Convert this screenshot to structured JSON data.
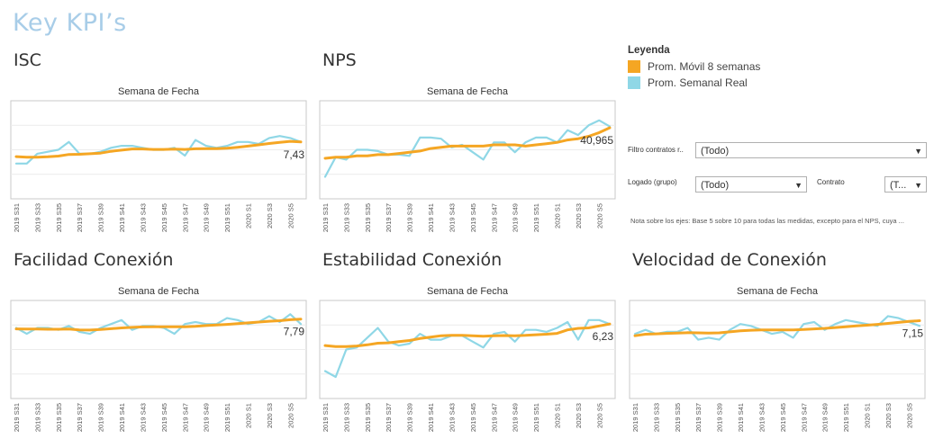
{
  "page_title": "Key KPI’s",
  "legend": {
    "title": "Leyenda",
    "items": [
      {
        "label": "Prom. Móvil 8 semanas",
        "color": "#f5a623"
      },
      {
        "label": "Prom. Semanal Real",
        "color": "#8fd7e6"
      }
    ]
  },
  "filters": {
    "contratos_label": "Filtro contratos r..",
    "contratos_value": "(Todo)",
    "logado_label": "Logado (grupo)",
    "logado_value": "(Todo)",
    "contrato_label": "Contrato",
    "contrato_value": "(T..."
  },
  "note": "Nota sobre los ejes: Base 5 sobre 10 para todas las medidas, excepto para el NPS, cuya ...",
  "chart_data": [
    {
      "type": "line",
      "panel_title": "ISC",
      "title": "Semana de Fecha",
      "x": [
        "2019 S31",
        "2019 S32",
        "2019 S33",
        "2019 S34",
        "2019 S35",
        "2019 S36",
        "2019 S37",
        "2019 S38",
        "2019 S39",
        "2019 S40",
        "2019 S41",
        "2019 S42",
        "2019 S43",
        "2019 S44",
        "2019 S45",
        "2019 S46",
        "2019 S47",
        "2019 S48",
        "2019 S49",
        "2019 S50",
        "2019 S51",
        "2019 S52",
        "2020 S1",
        "2020 S2",
        "2020 S3",
        "2020 S4",
        "2020 S5",
        "2020 S6"
      ],
      "tick_labels": [
        "2019 S31",
        "2019 S33",
        "2019 S35",
        "2019 S37",
        "2019 S39",
        "2019 S41",
        "2019 S43",
        "2019 S45",
        "2019 S47",
        "2019 S49",
        "2019 S51",
        "2020 S1",
        "2020 S3",
        "2020 S5"
      ],
      "ylim": [
        5,
        10
      ],
      "series": [
        {
          "name": "Prom. Semanal Real",
          "values": [
            6.8,
            6.8,
            7.3,
            7.4,
            7.5,
            7.9,
            7.3,
            7.3,
            7.4,
            7.6,
            7.7,
            7.7,
            7.6,
            7.5,
            7.5,
            7.6,
            7.2,
            8.0,
            7.7,
            7.6,
            7.7,
            7.9,
            7.9,
            7.8,
            8.1,
            8.2,
            8.1,
            7.9
          ]
        },
        {
          "name": "Prom. Móvil 8 semanas",
          "values": [
            7.15,
            7.12,
            7.12,
            7.14,
            7.18,
            7.26,
            7.27,
            7.3,
            7.33,
            7.42,
            7.48,
            7.54,
            7.54,
            7.52,
            7.52,
            7.53,
            7.52,
            7.55,
            7.56,
            7.56,
            7.58,
            7.63,
            7.69,
            7.75,
            7.82,
            7.88,
            7.93,
            7.9
          ]
        }
      ],
      "label": "7,43"
    },
    {
      "type": "line",
      "panel_title": "NPS",
      "title": "Semana de Fecha",
      "x": [
        "2019 S31",
        "2019 S32",
        "2019 S33",
        "2019 S34",
        "2019 S35",
        "2019 S36",
        "2019 S37",
        "2019 S38",
        "2019 S39",
        "2019 S40",
        "2019 S41",
        "2019 S42",
        "2019 S43",
        "2019 S44",
        "2019 S45",
        "2019 S46",
        "2019 S47",
        "2019 S48",
        "2019 S49",
        "2019 S50",
        "2019 S51",
        "2019 S52",
        "2020 S1",
        "2020 S2",
        "2020 S3",
        "2020 S4",
        "2020 S5",
        "2020 S6"
      ],
      "tick_labels": [
        "2019 S31",
        "2019 S33",
        "2019 S35",
        "2019 S37",
        "2019 S39",
        "2019 S41",
        "2019 S43",
        "2019 S45",
        "2019 S47",
        "2019 S49",
        "2019 S51",
        "2020 S1",
        "2020 S3",
        "2020 S5"
      ],
      "ylim": [
        -20,
        60
      ],
      "series": [
        {
          "name": "Prom. Semanal Real",
          "values": [
            -2,
            14,
            12,
            20,
            20,
            19,
            16,
            16,
            15,
            30,
            30,
            29,
            22,
            24,
            18,
            12,
            26,
            26,
            18,
            26,
            30,
            30,
            26,
            36,
            32,
            40,
            44,
            39
          ]
        },
        {
          "name": "Prom. Móvil 8 semanas",
          "values": [
            13,
            14,
            14,
            15,
            15,
            16,
            16,
            17,
            18,
            19,
            21,
            22,
            23,
            23,
            23,
            23,
            24,
            24,
            24,
            23,
            24,
            25,
            26,
            28,
            29,
            31,
            34,
            38
          ]
        }
      ],
      "label": "40,965"
    },
    {
      "type": "line",
      "panel_title": "Facilidad Conexión",
      "title": "Semana de Fecha",
      "x": [
        "2019 S31",
        "2019 S32",
        "2019 S33",
        "2019 S34",
        "2019 S35",
        "2019 S36",
        "2019 S37",
        "2019 S38",
        "2019 S39",
        "2019 S40",
        "2019 S41",
        "2019 S42",
        "2019 S43",
        "2019 S44",
        "2019 S45",
        "2019 S46",
        "2019 S47",
        "2019 S48",
        "2019 S49",
        "2019 S50",
        "2019 S51",
        "2019 S52",
        "2020 S1",
        "2020 S2",
        "2020 S3",
        "2020 S4",
        "2020 S5",
        "2020 S6"
      ],
      "tick_labels": [
        "2019 S31",
        "2019 S33",
        "2019 S35",
        "2019 S37",
        "2019 S39",
        "2019 S41",
        "2019 S43",
        "2019 S45",
        "2019 S47",
        "2019 S49",
        "2019 S51",
        "2020 S1",
        "2020 S3",
        "2020 S5"
      ],
      "ylim": [
        5,
        10
      ],
      "series": [
        {
          "name": "Prom. Semanal Real",
          "values": [
            8.6,
            8.3,
            8.6,
            8.6,
            8.5,
            8.7,
            8.4,
            8.3,
            8.6,
            8.8,
            9.0,
            8.5,
            8.7,
            8.7,
            8.6,
            8.3,
            8.8,
            8.9,
            8.8,
            8.8,
            9.1,
            9.0,
            8.8,
            8.9,
            9.2,
            8.9,
            9.3,
            8.8
          ]
        },
        {
          "name": "Prom. Móvil 8 semanas",
          "values": [
            8.55,
            8.54,
            8.54,
            8.53,
            8.53,
            8.54,
            8.5,
            8.49,
            8.52,
            8.56,
            8.6,
            8.63,
            8.65,
            8.66,
            8.66,
            8.66,
            8.66,
            8.68,
            8.72,
            8.75,
            8.78,
            8.82,
            8.86,
            8.9,
            8.94,
            8.97,
            9.02,
            9.05
          ]
        }
      ],
      "label": "7,79"
    },
    {
      "type": "line",
      "panel_title": "Estabilidad Conexión",
      "title": "Semana de Fecha",
      "x": [
        "2019 S31",
        "2019 S32",
        "2019 S33",
        "2019 S34",
        "2019 S35",
        "2019 S36",
        "2019 S37",
        "2019 S38",
        "2019 S39",
        "2019 S40",
        "2019 S41",
        "2019 S42",
        "2019 S43",
        "2019 S44",
        "2019 S45",
        "2019 S46",
        "2019 S47",
        "2019 S48",
        "2019 S49",
        "2019 S50",
        "2019 S51",
        "2019 S52",
        "2020 S1",
        "2020 S2",
        "2020 S3",
        "2020 S4",
        "2020 S5",
        "2020 S6"
      ],
      "tick_labels": [
        "2019 S31",
        "2019 S33",
        "2019 S35",
        "2019 S37",
        "2019 S39",
        "2019 S41",
        "2019 S43",
        "2019 S45",
        "2019 S47",
        "2019 S49",
        "2019 S51",
        "2020 S1",
        "2020 S3",
        "2020 S5"
      ],
      "ylim": [
        5,
        10
      ],
      "series": [
        {
          "name": "Prom. Semanal Real",
          "values": [
            6.4,
            6.1,
            7.5,
            7.6,
            8.1,
            8.6,
            7.9,
            7.7,
            7.8,
            8.3,
            8.0,
            8.0,
            8.2,
            8.2,
            7.9,
            7.6,
            8.3,
            8.4,
            7.9,
            8.5,
            8.5,
            8.4,
            8.6,
            8.9,
            8.0,
            9.0,
            9.0,
            8.8
          ]
        },
        {
          "name": "Prom. Móvil 8 semanas",
          "values": [
            7.7,
            7.65,
            7.65,
            7.68,
            7.74,
            7.82,
            7.84,
            7.9,
            7.96,
            8.06,
            8.13,
            8.2,
            8.22,
            8.22,
            8.2,
            8.18,
            8.2,
            8.21,
            8.2,
            8.22,
            8.25,
            8.28,
            8.32,
            8.5,
            8.58,
            8.6,
            8.7,
            8.8
          ]
        }
      ],
      "label": "6,23"
    },
    {
      "type": "line",
      "panel_title": "Velocidad de Conexión",
      "title": "Semana de Fecha",
      "x": [
        "2019 S31",
        "2019 S32",
        "2019 S33",
        "2019 S34",
        "2019 S35",
        "2019 S36",
        "2019 S37",
        "2019 S38",
        "2019 S39",
        "2019 S40",
        "2019 S41",
        "2019 S42",
        "2019 S43",
        "2019 S44",
        "2019 S45",
        "2019 S46",
        "2019 S47",
        "2019 S48",
        "2019 S49",
        "2019 S50",
        "2019 S51",
        "2019 S52",
        "2020 S1",
        "2020 S2",
        "2020 S3",
        "2020 S4",
        "2020 S5",
        "2020 S6"
      ],
      "tick_labels": [
        "2019 S31",
        "2019 S33",
        "2019 S35",
        "2019 S37",
        "2019 S39",
        "2019 S41",
        "2019 S43",
        "2019 S45",
        "2019 S47",
        "2019 S49",
        "2019 S51",
        "2020 S1",
        "2020 S3",
        "2020 S5"
      ],
      "ylim": [
        5,
        10
      ],
      "series": [
        {
          "name": "Prom. Semanal Real",
          "values": [
            8.3,
            8.5,
            8.3,
            8.4,
            8.4,
            8.6,
            8.0,
            8.1,
            8.0,
            8.5,
            8.8,
            8.7,
            8.5,
            8.3,
            8.4,
            8.1,
            8.8,
            8.9,
            8.5,
            8.8,
            9.0,
            8.9,
            8.8,
            8.7,
            9.2,
            9.1,
            8.9,
            8.7
          ]
        },
        {
          "name": "Prom. Móvil 8 semanas",
          "values": [
            8.2,
            8.28,
            8.3,
            8.32,
            8.34,
            8.36,
            8.35,
            8.34,
            8.35,
            8.4,
            8.45,
            8.48,
            8.5,
            8.5,
            8.5,
            8.5,
            8.52,
            8.55,
            8.58,
            8.62,
            8.66,
            8.7,
            8.74,
            8.78,
            8.83,
            8.88,
            8.93,
            8.97
          ]
        }
      ],
      "label": "7,15"
    }
  ]
}
